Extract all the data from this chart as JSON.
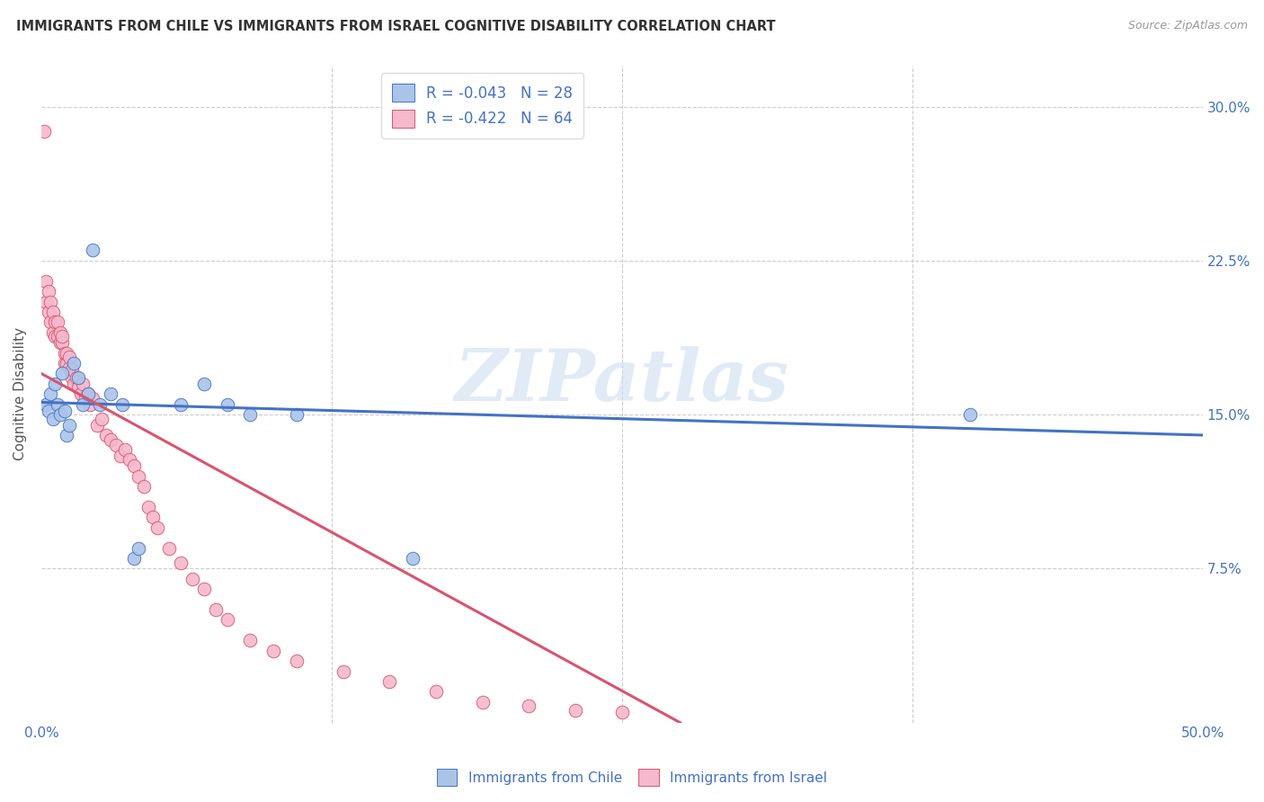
{
  "title": "IMMIGRANTS FROM CHILE VS IMMIGRANTS FROM ISRAEL COGNITIVE DISABILITY CORRELATION CHART",
  "source": "Source: ZipAtlas.com",
  "ylabel": "Cognitive Disability",
  "xlim": [
    0.0,
    0.5
  ],
  "ylim": [
    0.0,
    0.32
  ],
  "xtick_vals": [
    0.0,
    0.125,
    0.25,
    0.375,
    0.5
  ],
  "xtick_labels": [
    "0.0%",
    "",
    "",
    "",
    "50.0%"
  ],
  "ytick_vals": [
    0.3,
    0.225,
    0.15,
    0.075
  ],
  "ytick_labels": [
    "30.0%",
    "22.5%",
    "15.0%",
    "7.5%"
  ],
  "legend_r_chile": "-0.043",
  "legend_n_chile": "28",
  "legend_r_israel": "-0.422",
  "legend_n_israel": "64",
  "chile_color": "#aac4e8",
  "israel_color": "#f5b8cc",
  "chile_edge_color": "#4472c4",
  "israel_edge_color": "#d9546e",
  "chile_line_color": "#4472c4",
  "israel_line_color": "#d9546e",
  "title_color": "#333333",
  "axis_color": "#4472c4",
  "background_color": "#ffffff",
  "watermark": "ZIPatlas",
  "chile_line": [
    0.0,
    0.5,
    0.156,
    0.14
  ],
  "israel_line": [
    0.0,
    0.275,
    0.17,
    0.0
  ],
  "chile_x": [
    0.002,
    0.003,
    0.004,
    0.005,
    0.006,
    0.007,
    0.008,
    0.009,
    0.01,
    0.011,
    0.012,
    0.014,
    0.016,
    0.018,
    0.02,
    0.022,
    0.025,
    0.03,
    0.035,
    0.04,
    0.042,
    0.06,
    0.07,
    0.08,
    0.09,
    0.11,
    0.16,
    0.4
  ],
  "chile_y": [
    0.155,
    0.152,
    0.16,
    0.148,
    0.165,
    0.155,
    0.15,
    0.17,
    0.152,
    0.14,
    0.145,
    0.175,
    0.168,
    0.155,
    0.16,
    0.23,
    0.155,
    0.16,
    0.155,
    0.08,
    0.085,
    0.155,
    0.165,
    0.155,
    0.15,
    0.15,
    0.08,
    0.15
  ],
  "israel_x": [
    0.001,
    0.002,
    0.002,
    0.003,
    0.003,
    0.004,
    0.004,
    0.005,
    0.005,
    0.006,
    0.006,
    0.007,
    0.007,
    0.008,
    0.008,
    0.009,
    0.009,
    0.01,
    0.01,
    0.011,
    0.011,
    0.012,
    0.012,
    0.013,
    0.013,
    0.014,
    0.015,
    0.016,
    0.017,
    0.018,
    0.019,
    0.02,
    0.021,
    0.022,
    0.024,
    0.026,
    0.028,
    0.03,
    0.032,
    0.034,
    0.036,
    0.038,
    0.04,
    0.042,
    0.044,
    0.046,
    0.048,
    0.05,
    0.055,
    0.06,
    0.065,
    0.07,
    0.075,
    0.08,
    0.09,
    0.1,
    0.11,
    0.13,
    0.15,
    0.17,
    0.19,
    0.21,
    0.23,
    0.25
  ],
  "israel_y": [
    0.288,
    0.205,
    0.215,
    0.21,
    0.2,
    0.195,
    0.205,
    0.19,
    0.2,
    0.188,
    0.195,
    0.188,
    0.195,
    0.185,
    0.19,
    0.185,
    0.188,
    0.175,
    0.18,
    0.175,
    0.18,
    0.173,
    0.178,
    0.168,
    0.172,
    0.165,
    0.168,
    0.163,
    0.16,
    0.165,
    0.158,
    0.16,
    0.155,
    0.158,
    0.145,
    0.148,
    0.14,
    0.138,
    0.135,
    0.13,
    0.133,
    0.128,
    0.125,
    0.12,
    0.115,
    0.105,
    0.1,
    0.095,
    0.085,
    0.078,
    0.07,
    0.065,
    0.055,
    0.05,
    0.04,
    0.035,
    0.03,
    0.025,
    0.02,
    0.015,
    0.01,
    0.008,
    0.006,
    0.005
  ]
}
